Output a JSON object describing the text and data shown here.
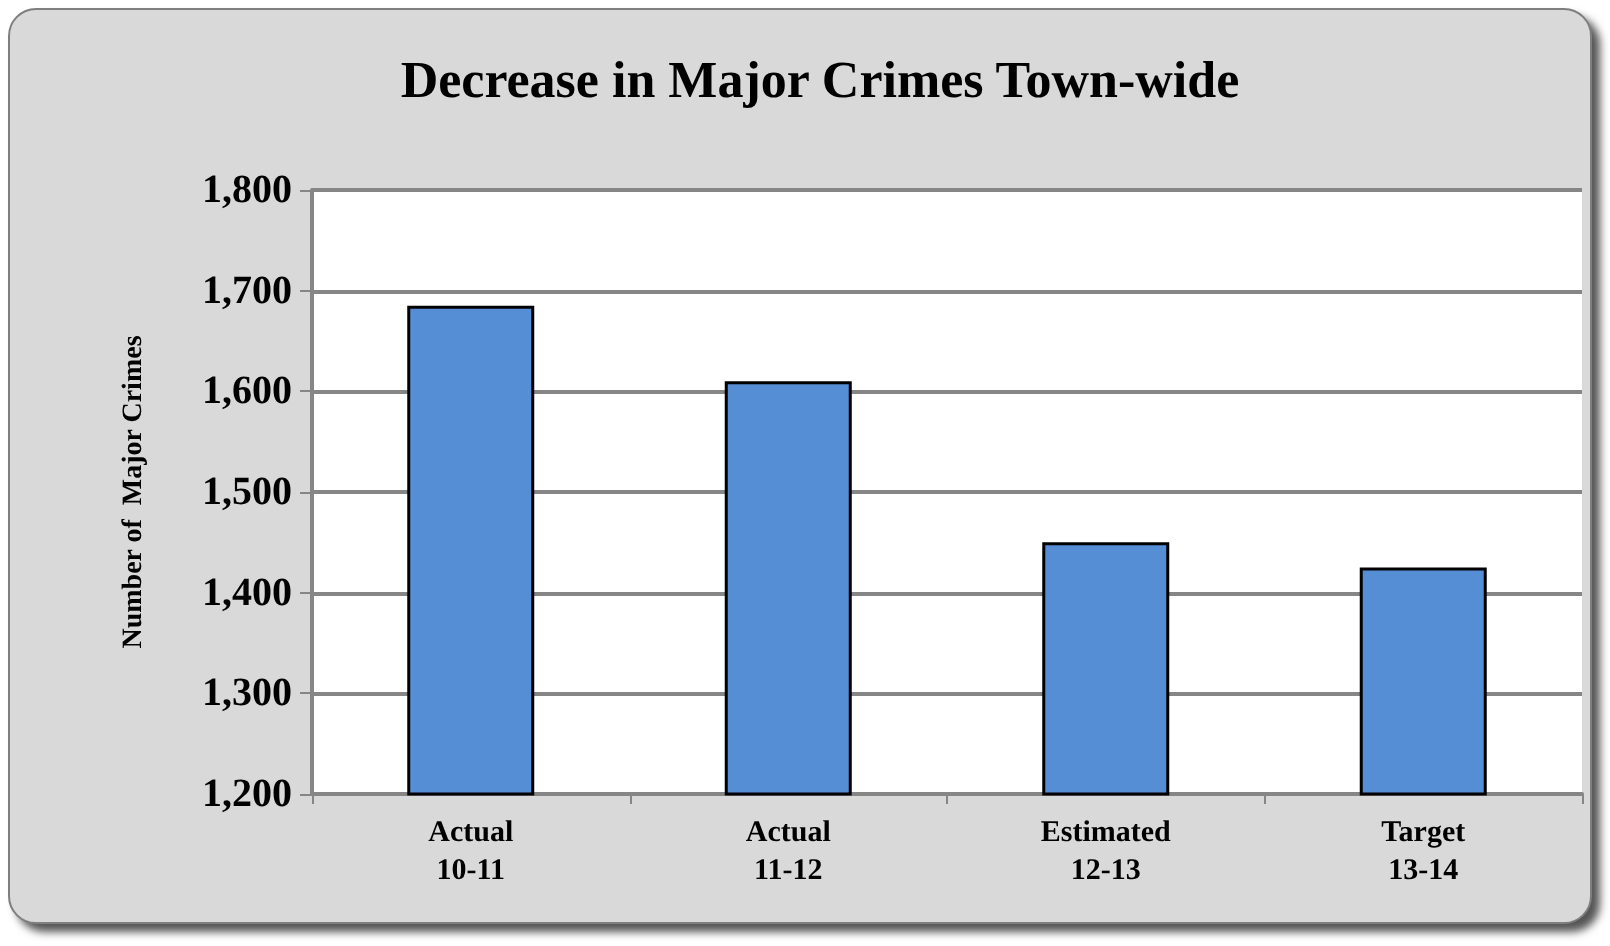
{
  "chart_data": {
    "type": "bar",
    "title": "Decrease in Major Crimes Town-wide",
    "ylabel": "Number of  Major Crimes",
    "categories": [
      "Actual\n10-11",
      "Actual\n11-12",
      "Estimated\n12-13",
      "Target\n13-14"
    ],
    "values": [
      1685,
      1610,
      1450,
      1425
    ],
    "color": "#558ed5",
    "ylim": [
      1200,
      1800
    ],
    "yticks": [
      {
        "value": 1200,
        "label": "1,200"
      },
      {
        "value": 1300,
        "label": "1,300"
      },
      {
        "value": 1400,
        "label": "1,400"
      },
      {
        "value": 1500,
        "label": "1,500"
      },
      {
        "value": 1600,
        "label": "1,600"
      },
      {
        "value": 1700,
        "label": "1,700"
      },
      {
        "value": 1800,
        "label": "1,800"
      }
    ],
    "grid": "y"
  }
}
